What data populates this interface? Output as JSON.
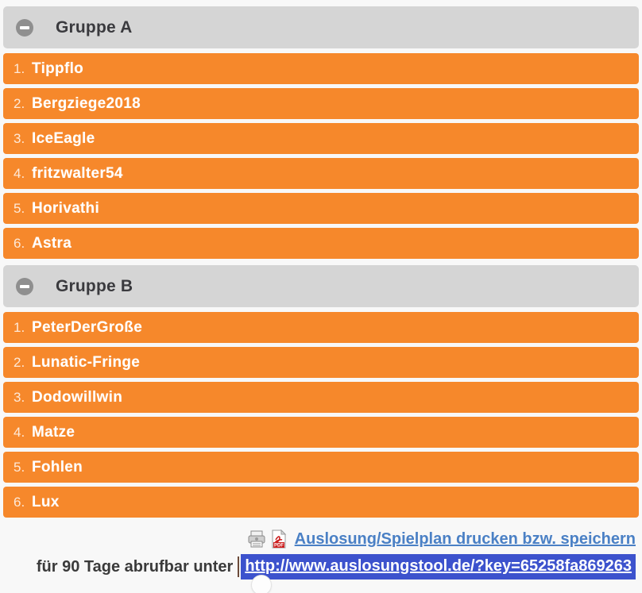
{
  "groups": [
    {
      "title": "Gruppe A",
      "entries": [
        {
          "num": "1.",
          "name": "Tippflo"
        },
        {
          "num": "2.",
          "name": "Bergziege2018"
        },
        {
          "num": "3.",
          "name": "IceEagle"
        },
        {
          "num": "4.",
          "name": "fritzwalter54"
        },
        {
          "num": "5.",
          "name": "Horivathi"
        },
        {
          "num": "6.",
          "name": "Astra"
        }
      ]
    },
    {
      "title": "Gruppe B",
      "entries": [
        {
          "num": "1.",
          "name": "PeterDerGroße"
        },
        {
          "num": "2.",
          "name": "Lunatic-Fringe"
        },
        {
          "num": "3.",
          "name": "Dodowillwin"
        },
        {
          "num": "4.",
          "name": "Matze"
        },
        {
          "num": "5.",
          "name": "Fohlen"
        },
        {
          "num": "6.",
          "name": "Lux"
        }
      ]
    }
  ],
  "footer": {
    "print_link": "Auslosung/Spielplan drucken bzw. speichern",
    "availability_text": "für 90 Tage abrufbar unter",
    "url": "http://www.auslosungstool.de/?key=65258fa869263",
    "pdf_icon_label": "PDF"
  },
  "icons": [
    "minus-circle-icon",
    "printer-icon",
    "pdf-file-icon"
  ],
  "colors": {
    "accent": "#f6882b",
    "header-gray": "#d5d5d5",
    "icon-gray": "#8f8f8f",
    "text-dark": "#3a3a3e",
    "link-blue": "#4a80c5",
    "selection-blue": "#3c52cd",
    "page-bg": "#f8f8f8"
  }
}
